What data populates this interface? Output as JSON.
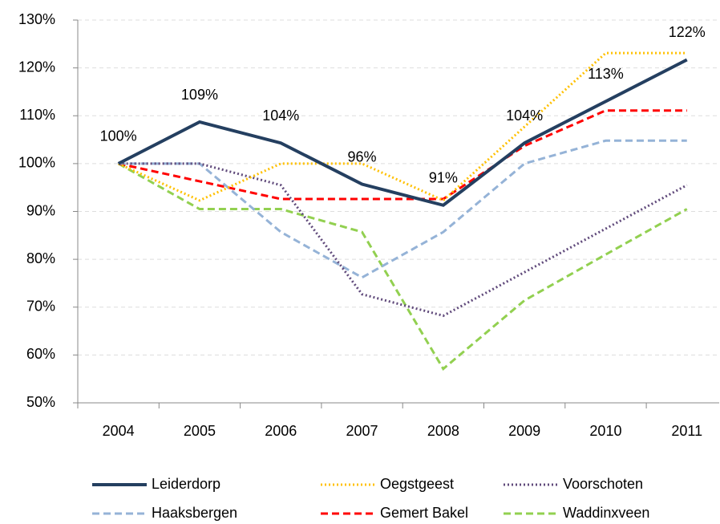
{
  "chart_data": {
    "type": "line",
    "categories": [
      "2004",
      "2005",
      "2006",
      "2007",
      "2008",
      "2009",
      "2010",
      "2011"
    ],
    "series": [
      {
        "name": "Leiderdorp",
        "color": "#243f60",
        "dash": "solid",
        "values": [
          100,
          108.7,
          104.3,
          95.7,
          91.3,
          104.3,
          113,
          121.7
        ],
        "value_labels": [
          "100%",
          "109%",
          "104%",
          "96%",
          "91%",
          "104%",
          "113%",
          "122%"
        ]
      },
      {
        "name": "Oegstgeest",
        "color": "#ffc000",
        "dash": "dotted",
        "values": [
          100,
          92.3,
          100,
          100,
          92.3,
          107.7,
          123.1,
          123.1
        ]
      },
      {
        "name": "Voorschoten",
        "color": "#604a7b",
        "dash": "dotted",
        "values": [
          100,
          100,
          95.5,
          72.7,
          68.2,
          77.3,
          86.4,
          95.5
        ]
      },
      {
        "name": "Haaksbergen",
        "color": "#95b3d7",
        "dash": "dashed",
        "values": [
          100,
          100,
          85.7,
          76.2,
          85.7,
          100,
          104.8,
          104.8
        ]
      },
      {
        "name": "Gemert Bakel",
        "color": "#ff0000",
        "dash": "dashed",
        "values": [
          100,
          96.3,
          92.6,
          92.6,
          92.6,
          103.7,
          111.1,
          111.1
        ]
      },
      {
        "name": "Waddinxveen",
        "color": "#92d050",
        "dash": "dashed",
        "values": [
          100,
          90.5,
          90.5,
          85.7,
          57.1,
          71.4,
          81,
          90.5
        ]
      }
    ],
    "ylim": [
      50,
      130
    ],
    "yticks": [
      {
        "value": 50,
        "label": "50%"
      },
      {
        "value": 60,
        "label": "60%"
      },
      {
        "value": 70,
        "label": "70%"
      },
      {
        "value": 80,
        "label": "80%"
      },
      {
        "value": 90,
        "label": "90%"
      },
      {
        "value": 100,
        "label": "100%"
      },
      {
        "value": 110,
        "label": "110%"
      },
      {
        "value": 120,
        "label": "120%"
      },
      {
        "value": 130,
        "label": "130%"
      }
    ],
    "grid": true,
    "legend": "bottom"
  }
}
